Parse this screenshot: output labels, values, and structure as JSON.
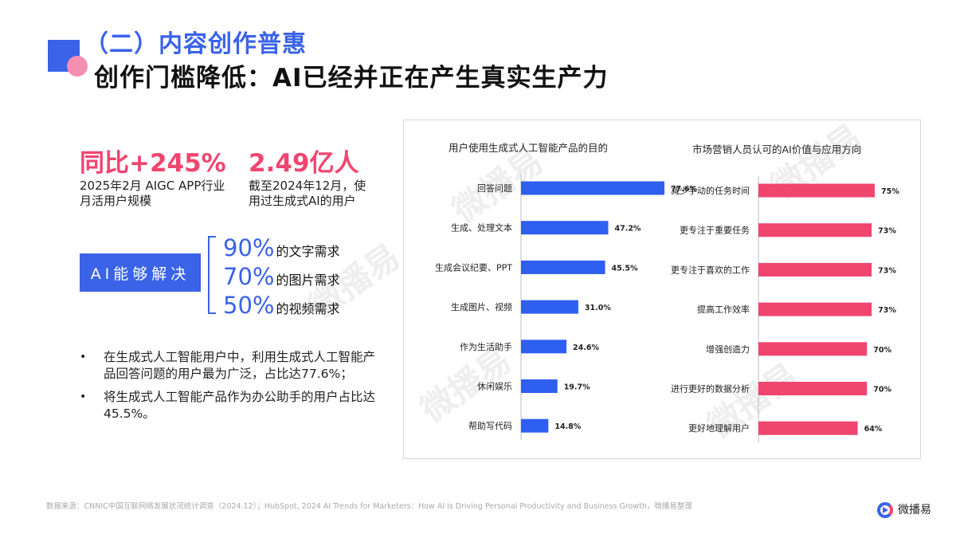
{
  "watermark": "微播易",
  "header": {
    "section_title": "（二）内容创作普惠",
    "main_title": "创作门槛降低：AI已经并正在产生真实生产力"
  },
  "stats": [
    {
      "value": "同比+245%",
      "desc_line1": "2025年2月 AIGC APP行业",
      "desc_line2": "月活用户规模"
    },
    {
      "value": "2.49亿人",
      "desc_line1": "截至2024年12月，使",
      "desc_line2": "用过生成式AI的用户"
    }
  ],
  "ai_block": {
    "label": "AI能够解决",
    "items": [
      {
        "pct": "90%",
        "text": "的文字需求"
      },
      {
        "pct": "70%",
        "text": "的图片需求"
      },
      {
        "pct": "50%",
        "text": "的视频需求"
      }
    ]
  },
  "bullets": [
    {
      "marker": "•",
      "text": "在生成式人工智能用户中，利用生成式人工智能产品回答问题的用户最为广泛，占比达77.6%；"
    },
    {
      "marker": "•",
      "text": "将生成式人工智能产品作为办公助手的用户占比达45.5%。"
    }
  ],
  "chart_data": [
    {
      "type": "bar",
      "orientation": "horizontal",
      "title": "用户使用生成式人工智能产品的目的",
      "categories": [
        "回答问题",
        "生成、处理文本",
        "生成会议纪要、PPT",
        "生成图片、视频",
        "作为生活助手",
        "休闲娱乐",
        "帮助写代码"
      ],
      "values": [
        77.6,
        47.2,
        45.5,
        31.0,
        24.6,
        19.7,
        14.8
      ],
      "labels": [
        "77.6%",
        "47.2%",
        "45.5%",
        "31.0%",
        "24.6%",
        "19.7%",
        "14.8%"
      ],
      "color": "#2f5ff0",
      "xlim": [
        0,
        100
      ]
    },
    {
      "type": "bar",
      "orientation": "horizontal",
      "title": "市场营销人员认可的AI价值与应用方向",
      "categories": [
        "减少手动的任务时间",
        "更专注于重要任务",
        "更专注于喜欢的工作",
        "提高工作效率",
        "增强创造力",
        "进行更好的数据分析",
        "更好地理解用户"
      ],
      "values": [
        75,
        73,
        73,
        73,
        70,
        70,
        64
      ],
      "labels": [
        "75%",
        "73%",
        "73%",
        "73%",
        "70%",
        "70%",
        "64%"
      ],
      "color": "#f0456f",
      "xlim": [
        0,
        100
      ]
    }
  ],
  "footer": {
    "source": "数据来源：CNNIC中国互联网络发展状况统计调查（2024.12）；HubSpot, 2024 AI Trends for Marketers：How AI is Driving Personal Productivity and Business Growth，微播易整理",
    "logo_text": "微播易"
  }
}
